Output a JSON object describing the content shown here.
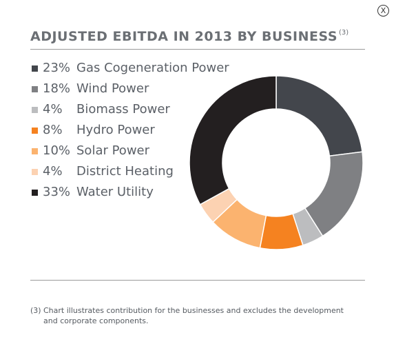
{
  "close_button": {
    "label": "X"
  },
  "title": {
    "text": "ADJUSTED EBITDA IN 2013 BY BUSINESS",
    "footnote_ref": "(3)"
  },
  "footnote": {
    "marker": "(3)",
    "line1": "Chart illustrates contribution for the businesses and excludes the development",
    "line2": "and corporate components."
  },
  "colors": {
    "gas": "#43464c",
    "wind": "#7f8083",
    "biomass": "#bcbdbf",
    "hydro": "#f58220",
    "solar": "#fbb36f",
    "district": "#fcd2b2",
    "water": "#231f20"
  },
  "legend": [
    {
      "pct": "23%",
      "label": "Gas Cogeneration Power",
      "color": "#43464c"
    },
    {
      "pct": "18%",
      "label": "Wind Power",
      "color": "#7f8083"
    },
    {
      "pct": "4%",
      "label": "Biomass Power",
      "color": "#bcbdbf"
    },
    {
      "pct": "8%",
      "label": "Hydro Power",
      "color": "#f58220"
    },
    {
      "pct": "10%",
      "label": "Solar Power",
      "color": "#fbb36f"
    },
    {
      "pct": "4%",
      "label": "District Heating",
      "color": "#fcd2b2"
    },
    {
      "pct": "33%",
      "label": "Water Utility",
      "color": "#231f20"
    }
  ],
  "chart_data": {
    "type": "pie",
    "variant": "donut",
    "title": "ADJUSTED EBITDA IN 2013 BY BUSINESS",
    "categories": [
      "Gas Cogeneration Power",
      "Wind Power",
      "Biomass Power",
      "Hydro Power",
      "Solar Power",
      "District Heating",
      "Water Utility"
    ],
    "values": [
      23,
      18,
      4,
      8,
      10,
      4,
      33
    ],
    "unit": "%",
    "colors": [
      "#43464c",
      "#7f8083",
      "#bcbdbf",
      "#f58220",
      "#fbb36f",
      "#fcd2b2",
      "#231f20"
    ],
    "start_angle": "12 o'clock, clockwise",
    "legend_position": "left"
  }
}
